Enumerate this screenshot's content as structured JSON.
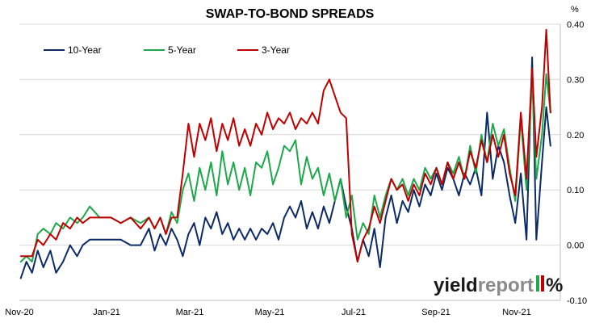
{
  "chart_data": {
    "type": "line",
    "title": "SWAP-TO-BOND SPREADS",
    "ylabel": "%",
    "ylim": [
      -0.1,
      0.4
    ],
    "y_ticks": [
      "0.40",
      "0.30",
      "0.20",
      "0.10",
      "0.00",
      "-0.10"
    ],
    "y_tick_values": [
      0.4,
      0.3,
      0.2,
      0.1,
      0.0,
      -0.1
    ],
    "x_ticks": [
      "Nov-20",
      "Jan-21",
      "Mar-21",
      "May-21",
      "Jul-21",
      "Sep-21",
      "Nov-21"
    ],
    "xlim": [
      "2020-11-01",
      "2021-11-20"
    ],
    "grid": "horizontal",
    "legend_position": "top-left",
    "series": [
      {
        "name": "10-Year",
        "color": "#0b2a66",
        "points": [
          [
            "2020-11-02",
            -0.06
          ],
          [
            "2020-11-06",
            -0.03
          ],
          [
            "2020-11-10",
            -0.05
          ],
          [
            "2020-11-14",
            -0.01
          ],
          [
            "2020-11-18",
            -0.04
          ],
          [
            "2020-11-23",
            -0.01
          ],
          [
            "2020-11-27",
            -0.05
          ],
          [
            "2020-12-02",
            -0.03
          ],
          [
            "2020-12-07",
            0.0
          ],
          [
            "2020-12-12",
            -0.02
          ],
          [
            "2020-12-16",
            0.0
          ],
          [
            "2020-12-21",
            0.01
          ],
          [
            "2020-12-28",
            0.01
          ],
          [
            "2021-01-05",
            0.01
          ],
          [
            "2021-01-12",
            0.01
          ],
          [
            "2021-01-19",
            0.0
          ],
          [
            "2021-01-26",
            0.0
          ],
          [
            "2021-02-01",
            0.03
          ],
          [
            "2021-02-05",
            -0.01
          ],
          [
            "2021-02-09",
            0.02
          ],
          [
            "2021-02-13",
            0.0
          ],
          [
            "2021-02-17",
            0.03
          ],
          [
            "2021-02-21",
            0.01
          ],
          [
            "2021-02-25",
            -0.02
          ],
          [
            "2021-03-01",
            0.02
          ],
          [
            "2021-03-05",
            0.04
          ],
          [
            "2021-03-09",
            0.0
          ],
          [
            "2021-03-13",
            0.05
          ],
          [
            "2021-03-17",
            0.03
          ],
          [
            "2021-03-21",
            0.06
          ],
          [
            "2021-03-25",
            0.02
          ],
          [
            "2021-03-29",
            0.04
          ],
          [
            "2021-04-02",
            0.01
          ],
          [
            "2021-04-06",
            0.03
          ],
          [
            "2021-04-10",
            0.01
          ],
          [
            "2021-04-14",
            0.03
          ],
          [
            "2021-04-18",
            0.01
          ],
          [
            "2021-04-22",
            0.03
          ],
          [
            "2021-04-26",
            0.02
          ],
          [
            "2021-04-30",
            0.04
          ],
          [
            "2021-05-04",
            0.01
          ],
          [
            "2021-05-08",
            0.05
          ],
          [
            "2021-05-12",
            0.07
          ],
          [
            "2021-05-16",
            0.05
          ],
          [
            "2021-05-20",
            0.08
          ],
          [
            "2021-05-24",
            0.03
          ],
          [
            "2021-05-28",
            0.06
          ],
          [
            "2021-06-01",
            0.03
          ],
          [
            "2021-06-05",
            0.07
          ],
          [
            "2021-06-09",
            0.04
          ],
          [
            "2021-06-13",
            0.08
          ],
          [
            "2021-06-17",
            0.12
          ],
          [
            "2021-06-21",
            0.07
          ],
          [
            "2021-06-25",
            0.03
          ],
          [
            "2021-06-29",
            -0.03
          ],
          [
            "2021-07-03",
            0.01
          ],
          [
            "2021-07-07",
            -0.02
          ],
          [
            "2021-07-11",
            0.03
          ],
          [
            "2021-07-15",
            -0.04
          ],
          [
            "2021-07-19",
            0.05
          ],
          [
            "2021-07-23",
            0.09
          ],
          [
            "2021-07-27",
            0.04
          ],
          [
            "2021-07-31",
            0.08
          ],
          [
            "2021-08-04",
            0.06
          ],
          [
            "2021-08-08",
            0.1
          ],
          [
            "2021-08-12",
            0.07
          ],
          [
            "2021-08-16",
            0.11
          ],
          [
            "2021-08-20",
            0.09
          ],
          [
            "2021-08-24",
            0.13
          ],
          [
            "2021-08-28",
            0.1
          ],
          [
            "2021-09-01",
            0.14
          ],
          [
            "2021-09-05",
            0.12
          ],
          [
            "2021-09-09",
            0.09
          ],
          [
            "2021-09-13",
            0.13
          ],
          [
            "2021-09-17",
            0.11
          ],
          [
            "2021-09-21",
            0.14
          ],
          [
            "2021-09-25",
            0.09
          ],
          [
            "2021-09-29",
            0.24
          ],
          [
            "2021-10-03",
            0.12
          ],
          [
            "2021-10-07",
            0.18
          ],
          [
            "2021-10-11",
            0.15
          ],
          [
            "2021-10-15",
            0.09
          ],
          [
            "2021-10-19",
            0.04
          ],
          [
            "2021-10-23",
            0.13
          ],
          [
            "2021-10-27",
            0.01
          ],
          [
            "2021-10-31",
            0.34
          ],
          [
            "2021-11-03",
            0.01
          ],
          [
            "2021-11-07",
            0.15
          ],
          [
            "2021-11-10",
            0.25
          ],
          [
            "2021-11-13",
            0.18
          ]
        ]
      },
      {
        "name": "5-Year",
        "color": "#1ea84a",
        "points": [
          [
            "2020-11-02",
            -0.03
          ],
          [
            "2020-11-06",
            -0.02
          ],
          [
            "2020-11-10",
            -0.03
          ],
          [
            "2020-11-14",
            0.02
          ],
          [
            "2020-11-18",
            0.03
          ],
          [
            "2020-11-23",
            0.02
          ],
          [
            "2020-11-27",
            0.04
          ],
          [
            "2020-12-02",
            0.03
          ],
          [
            "2020-12-07",
            0.05
          ],
          [
            "2020-12-12",
            0.04
          ],
          [
            "2020-12-16",
            0.05
          ],
          [
            "2020-12-21",
            0.07
          ],
          [
            "2020-12-28",
            0.05
          ],
          [
            "2021-01-05",
            0.05
          ],
          [
            "2021-01-12",
            0.04
          ],
          [
            "2021-01-19",
            0.05
          ],
          [
            "2021-01-26",
            0.04
          ],
          [
            "2021-02-01",
            0.05
          ],
          [
            "2021-02-05",
            0.03
          ],
          [
            "2021-02-09",
            0.05
          ],
          [
            "2021-02-13",
            0.02
          ],
          [
            "2021-02-17",
            0.06
          ],
          [
            "2021-02-21",
            0.04
          ],
          [
            "2021-02-25",
            0.1
          ],
          [
            "2021-03-01",
            0.13
          ],
          [
            "2021-03-05",
            0.08
          ],
          [
            "2021-03-09",
            0.14
          ],
          [
            "2021-03-13",
            0.1
          ],
          [
            "2021-03-17",
            0.15
          ],
          [
            "2021-03-21",
            0.09
          ],
          [
            "2021-03-25",
            0.17
          ],
          [
            "2021-03-29",
            0.11
          ],
          [
            "2021-04-02",
            0.15
          ],
          [
            "2021-04-06",
            0.1
          ],
          [
            "2021-04-10",
            0.14
          ],
          [
            "2021-04-14",
            0.09
          ],
          [
            "2021-04-18",
            0.15
          ],
          [
            "2021-04-22",
            0.14
          ],
          [
            "2021-04-26",
            0.17
          ],
          [
            "2021-04-30",
            0.11
          ],
          [
            "2021-05-04",
            0.14
          ],
          [
            "2021-05-08",
            0.18
          ],
          [
            "2021-05-12",
            0.17
          ],
          [
            "2021-05-16",
            0.19
          ],
          [
            "2021-05-20",
            0.11
          ],
          [
            "2021-05-24",
            0.16
          ],
          [
            "2021-05-28",
            0.12
          ],
          [
            "2021-06-01",
            0.14
          ],
          [
            "2021-06-05",
            0.09
          ],
          [
            "2021-06-09",
            0.13
          ],
          [
            "2021-06-13",
            0.08
          ],
          [
            "2021-06-17",
            0.12
          ],
          [
            "2021-06-21",
            0.05
          ],
          [
            "2021-06-25",
            0.09
          ],
          [
            "2021-06-29",
            0.01
          ],
          [
            "2021-07-03",
            0.04
          ],
          [
            "2021-07-07",
            0.02
          ],
          [
            "2021-07-11",
            0.09
          ],
          [
            "2021-07-15",
            0.05
          ],
          [
            "2021-07-19",
            0.09
          ],
          [
            "2021-07-23",
            0.12
          ],
          [
            "2021-07-27",
            0.1
          ],
          [
            "2021-07-31",
            0.12
          ],
          [
            "2021-08-04",
            0.09
          ],
          [
            "2021-08-08",
            0.12
          ],
          [
            "2021-08-12",
            0.1
          ],
          [
            "2021-08-16",
            0.14
          ],
          [
            "2021-08-20",
            0.12
          ],
          [
            "2021-08-24",
            0.14
          ],
          [
            "2021-08-28",
            0.11
          ],
          [
            "2021-09-01",
            0.15
          ],
          [
            "2021-09-05",
            0.13
          ],
          [
            "2021-09-09",
            0.16
          ],
          [
            "2021-09-13",
            0.12
          ],
          [
            "2021-09-17",
            0.18
          ],
          [
            "2021-09-21",
            0.13
          ],
          [
            "2021-09-25",
            0.2
          ],
          [
            "2021-09-29",
            0.15
          ],
          [
            "2021-10-03",
            0.22
          ],
          [
            "2021-10-07",
            0.18
          ],
          [
            "2021-10-11",
            0.21
          ],
          [
            "2021-10-15",
            0.14
          ],
          [
            "2021-10-19",
            0.08
          ],
          [
            "2021-10-23",
            0.23
          ],
          [
            "2021-10-27",
            0.1
          ],
          [
            "2021-10-31",
            0.3
          ],
          [
            "2021-11-03",
            0.12
          ],
          [
            "2021-11-07",
            0.2
          ],
          [
            "2021-11-10",
            0.31
          ],
          [
            "2021-11-13",
            0.24
          ]
        ]
      },
      {
        "name": "3-Year",
        "color": "#c00000",
        "points": [
          [
            "2020-11-02",
            -0.02
          ],
          [
            "2020-11-06",
            -0.02
          ],
          [
            "2020-11-10",
            -0.02
          ],
          [
            "2020-11-14",
            0.01
          ],
          [
            "2020-11-18",
            0.0
          ],
          [
            "2020-11-23",
            0.02
          ],
          [
            "2020-11-27",
            0.01
          ],
          [
            "2020-12-02",
            0.04
          ],
          [
            "2020-12-07",
            0.03
          ],
          [
            "2020-12-12",
            0.05
          ],
          [
            "2020-12-16",
            0.04
          ],
          [
            "2020-12-21",
            0.05
          ],
          [
            "2020-12-28",
            0.05
          ],
          [
            "2021-01-05",
            0.05
          ],
          [
            "2021-01-12",
            0.04
          ],
          [
            "2021-01-19",
            0.05
          ],
          [
            "2021-01-26",
            0.03
          ],
          [
            "2021-02-01",
            0.05
          ],
          [
            "2021-02-05",
            0.03
          ],
          [
            "2021-02-09",
            0.05
          ],
          [
            "2021-02-13",
            0.02
          ],
          [
            "2021-02-17",
            0.05
          ],
          [
            "2021-02-21",
            0.05
          ],
          [
            "2021-02-25",
            0.13
          ],
          [
            "2021-03-01",
            0.22
          ],
          [
            "2021-03-05",
            0.16
          ],
          [
            "2021-03-09",
            0.22
          ],
          [
            "2021-03-13",
            0.19
          ],
          [
            "2021-03-17",
            0.23
          ],
          [
            "2021-03-21",
            0.17
          ],
          [
            "2021-03-25",
            0.22
          ],
          [
            "2021-03-29",
            0.19
          ],
          [
            "2021-04-02",
            0.23
          ],
          [
            "2021-04-06",
            0.18
          ],
          [
            "2021-04-10",
            0.21
          ],
          [
            "2021-04-14",
            0.18
          ],
          [
            "2021-04-18",
            0.22
          ],
          [
            "2021-04-22",
            0.2
          ],
          [
            "2021-04-26",
            0.24
          ],
          [
            "2021-04-30",
            0.21
          ],
          [
            "2021-05-04",
            0.23
          ],
          [
            "2021-05-08",
            0.22
          ],
          [
            "2021-05-12",
            0.24
          ],
          [
            "2021-05-16",
            0.21
          ],
          [
            "2021-05-20",
            0.23
          ],
          [
            "2021-05-24",
            0.22
          ],
          [
            "2021-05-28",
            0.24
          ],
          [
            "2021-06-01",
            0.22
          ],
          [
            "2021-06-05",
            0.28
          ],
          [
            "2021-06-09",
            0.3
          ],
          [
            "2021-06-13",
            0.27
          ],
          [
            "2021-06-17",
            0.24
          ],
          [
            "2021-06-21",
            0.23
          ],
          [
            "2021-06-25",
            0.02
          ],
          [
            "2021-06-29",
            -0.03
          ],
          [
            "2021-07-03",
            0.01
          ],
          [
            "2021-07-07",
            0.03
          ],
          [
            "2021-07-11",
            0.07
          ],
          [
            "2021-07-15",
            0.04
          ],
          [
            "2021-07-19",
            0.08
          ],
          [
            "2021-07-23",
            0.12
          ],
          [
            "2021-07-27",
            0.1
          ],
          [
            "2021-07-31",
            0.11
          ],
          [
            "2021-08-04",
            0.08
          ],
          [
            "2021-08-08",
            0.11
          ],
          [
            "2021-08-12",
            0.09
          ],
          [
            "2021-08-16",
            0.13
          ],
          [
            "2021-08-20",
            0.11
          ],
          [
            "2021-08-24",
            0.14
          ],
          [
            "2021-08-28",
            0.11
          ],
          [
            "2021-09-01",
            0.15
          ],
          [
            "2021-09-05",
            0.12
          ],
          [
            "2021-09-09",
            0.15
          ],
          [
            "2021-09-13",
            0.12
          ],
          [
            "2021-09-17",
            0.17
          ],
          [
            "2021-09-21",
            0.14
          ],
          [
            "2021-09-25",
            0.19
          ],
          [
            "2021-09-29",
            0.15
          ],
          [
            "2021-10-03",
            0.2
          ],
          [
            "2021-10-07",
            0.16
          ],
          [
            "2021-10-11",
            0.2
          ],
          [
            "2021-10-15",
            0.13
          ],
          [
            "2021-10-19",
            0.09
          ],
          [
            "2021-10-23",
            0.24
          ],
          [
            "2021-10-27",
            0.12
          ],
          [
            "2021-10-31",
            0.32
          ],
          [
            "2021-11-03",
            0.16
          ],
          [
            "2021-11-07",
            0.25
          ],
          [
            "2021-11-10",
            0.39
          ],
          [
            "2021-11-13",
            0.24
          ]
        ]
      }
    ]
  },
  "watermark": {
    "part1": "yield",
    "part2": "report",
    "symbol": "%",
    "colors": {
      "dark": "#1a1a1a",
      "grey": "#8a8a8a",
      "green": "#1ea84a",
      "red": "#c00000"
    }
  },
  "colors": {
    "gridline": "#d9d9d9",
    "axis": "#bfbfbf"
  }
}
